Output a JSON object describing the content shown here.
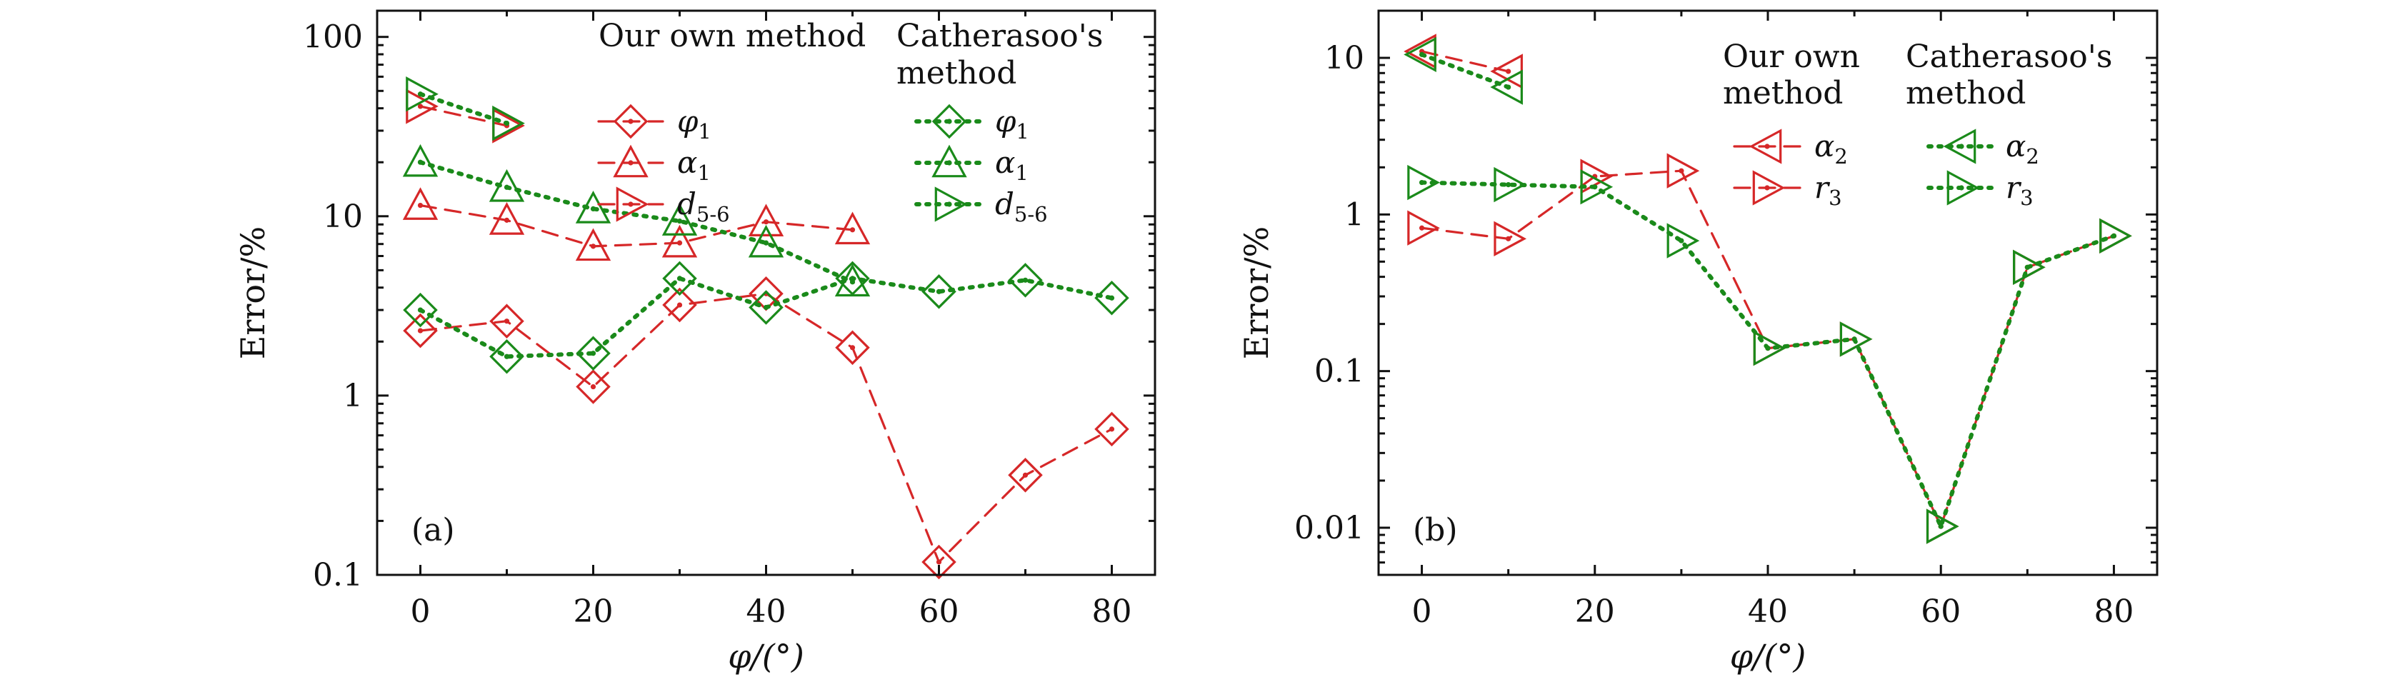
{
  "chart_data": [
    {
      "type": "scatter",
      "panel_label": "(a)",
      "xlabel": "φ/(°)",
      "ylabel": "Error/%",
      "yscale": "log",
      "xlim": [
        -5,
        85
      ],
      "ylim": [
        0.1,
        140
      ],
      "xticks": [
        0,
        20,
        40,
        60,
        80
      ],
      "xtick_labels": [
        "0",
        "20",
        "40",
        "60",
        "80"
      ],
      "yticks": [
        0.1,
        1,
        10,
        100
      ],
      "ytick_labels": [
        "0.1",
        "1",
        "10",
        "100"
      ],
      "legend": {
        "placement": "top-right",
        "group_titles": [
          [
            "Our own method"
          ],
          [
            "Catherasoo's",
            "method"
          ]
        ]
      },
      "series": [
        {
          "name": "φ",
          "sub": "1",
          "group": 0,
          "color": "#d62728",
          "line": "dashed",
          "marker": "diamond",
          "x": [
            0,
            10,
            20,
            30,
            40,
            50,
            60,
            70,
            80
          ],
          "y": [
            2.3,
            2.6,
            1.12,
            3.2,
            3.7,
            1.85,
            0.118,
            0.36,
            0.65
          ]
        },
        {
          "name": "α",
          "sub": "1",
          "group": 0,
          "color": "#d62728",
          "line": "dashed",
          "marker": "triangle-up",
          "x": [
            0,
            10,
            20,
            30,
            40,
            50
          ],
          "y": [
            11.5,
            9.5,
            6.8,
            7.1,
            9.3,
            8.4
          ]
        },
        {
          "name": "d",
          "sub": "5-6",
          "group": 0,
          "color": "#d62728",
          "line": "dashed",
          "marker": "triangle-right",
          "x": [
            0,
            10
          ],
          "y": [
            41,
            32
          ]
        },
        {
          "name": "φ",
          "sub": "1",
          "group": 1,
          "color": "#1a8a1a",
          "line": "dotted",
          "marker": "diamond",
          "x": [
            0,
            10,
            20,
            30,
            40,
            50,
            60,
            70,
            80
          ],
          "y": [
            3.0,
            1.65,
            1.72,
            4.5,
            3.1,
            4.5,
            3.8,
            4.4,
            3.5
          ]
        },
        {
          "name": "α",
          "sub": "1",
          "group": 1,
          "color": "#1a8a1a",
          "line": "dotted",
          "marker": "triangle-up",
          "x": [
            0,
            10,
            20,
            30,
            40,
            50
          ],
          "y": [
            20,
            14.5,
            11,
            9.4,
            7.1,
            4.3
          ]
        },
        {
          "name": "d",
          "sub": "5-6",
          "group": 1,
          "color": "#1a8a1a",
          "line": "dotted",
          "marker": "triangle-right",
          "x": [
            0,
            10
          ],
          "y": [
            48,
            33
          ]
        }
      ]
    },
    {
      "type": "scatter",
      "panel_label": "(b)",
      "xlabel": "φ/(°)",
      "ylabel": "Error/%",
      "yscale": "log",
      "xlim": [
        -5,
        85
      ],
      "ylim": [
        0.005,
        20
      ],
      "xticks": [
        0,
        20,
        40,
        60,
        80
      ],
      "xtick_labels": [
        "0",
        "20",
        "40",
        "60",
        "80"
      ],
      "yticks": [
        0.01,
        0.1,
        1,
        10
      ],
      "ytick_labels": [
        "0.01",
        "0.1",
        "1",
        "10"
      ],
      "legend": {
        "placement": "top-right",
        "group_titles": [
          [
            "Our own",
            "method"
          ],
          [
            "Catherasoo's",
            "method"
          ]
        ]
      },
      "series": [
        {
          "name": "α",
          "sub": "2",
          "group": 0,
          "color": "#d62728",
          "line": "dashed",
          "marker": "triangle-left",
          "x": [
            0,
            10
          ],
          "y": [
            11,
            8.2
          ]
        },
        {
          "name": "r",
          "sub": "3",
          "group": 0,
          "color": "#d62728",
          "line": "dashed",
          "marker": "triangle-right",
          "x": [
            0,
            10,
            20,
            30,
            40,
            50,
            60,
            70,
            80
          ],
          "y": [
            0.82,
            0.7,
            1.75,
            1.9,
            0.14,
            0.16,
            0.0102,
            0.46,
            0.73
          ]
        },
        {
          "name": "α",
          "sub": "2",
          "group": 1,
          "color": "#1a8a1a",
          "line": "dotted",
          "marker": "triangle-left",
          "x": [
            0,
            10
          ],
          "y": [
            10.5,
            6.5
          ]
        },
        {
          "name": "r",
          "sub": "3",
          "group": 1,
          "color": "#1a8a1a",
          "line": "dotted",
          "marker": "triangle-right",
          "x": [
            0,
            10,
            20,
            30,
            40,
            50,
            60,
            70,
            80
          ],
          "y": [
            1.6,
            1.55,
            1.5,
            0.68,
            0.14,
            0.16,
            0.0102,
            0.46,
            0.73
          ]
        }
      ]
    }
  ]
}
